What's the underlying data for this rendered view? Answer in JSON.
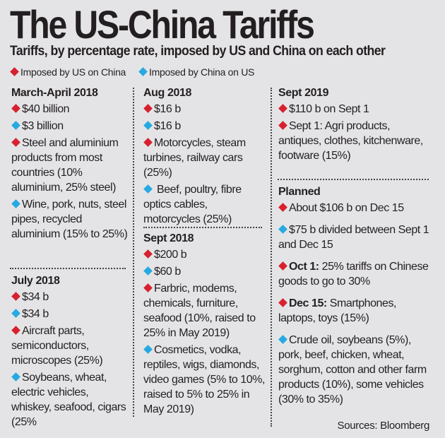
{
  "title": "The US-China Tariffs",
  "subtitle": "Tariffs, by percentage rate, imposed by US and China on each other",
  "colors": {
    "us": "#d7212f",
    "china": "#27a9e1"
  },
  "legend": [
    {
      "key": "us",
      "label": "Imposed by US on China"
    },
    {
      "key": "china",
      "label": "Imposed by China on US"
    }
  ],
  "sections": [
    {
      "heading": "March-April 2018",
      "items": [
        {
          "by": "us",
          "text": "$40 billion"
        },
        {
          "by": "china",
          "text": "$3 billion"
        },
        {
          "by": "us",
          "text": "Steel and aluminium products from most countries (10% aluminium, 25% steel)"
        },
        {
          "by": "china",
          "text": "Wine, pork, nuts, steel pipes, recycled aluminium (15% to 25%)"
        }
      ]
    },
    {
      "heading": "July 2018",
      "items": [
        {
          "by": "us",
          "text": "$34 b"
        },
        {
          "by": "china",
          "text": "$34 b"
        },
        {
          "by": "us",
          "text": "Aircraft parts, semiconductors, microscopes (25%)"
        },
        {
          "by": "china",
          "text": "Soybeans, wheat, electric vehicles, whiskey, seafood, cigars (25%"
        }
      ]
    },
    {
      "heading": "Aug 2018",
      "items": [
        {
          "by": "us",
          "text": "$16 b"
        },
        {
          "by": "china",
          "text": "$16 b"
        },
        {
          "by": "us",
          "text": "Motorcycles, steam turbines, railway cars (25%)"
        },
        {
          "by": "china",
          "text": " Beef, poultry, fibre optics cables, motorcycles (25%)"
        }
      ]
    },
    {
      "heading": "Sept 2018",
      "items": [
        {
          "by": "us",
          "text": "$200 b"
        },
        {
          "by": "china",
          "text": "$60 b"
        },
        {
          "by": "us",
          "text": "Farbric, modems, chemicals, furniture, seafood (10%, raised to 25% in May 2019)"
        },
        {
          "by": "china",
          "text": "Cosmetics, vodka, reptiles, wigs, diamonds, video games (5% to 10%, raised to 5% to 25% in May 2019)"
        }
      ]
    },
    {
      "heading": "Sept 2019",
      "items": [
        {
          "by": "us",
          "text": "$110 b on Sept 1"
        },
        {
          "by": "us",
          "text": "Sept 1: Agri products, antiques, clothes, kitchenware, footware (15%)"
        }
      ]
    },
    {
      "heading": "Planned",
      "items": [
        {
          "by": "us",
          "text": "About $106 b on Dec 15"
        },
        {
          "by": "china",
          "text": "$75 b divided between Sept 1 and Dec 15"
        },
        {
          "by": "us",
          "bold": "Oct 1:",
          "text": " 25% tariffs on Chinese goods to go to 30%"
        },
        {
          "by": "us",
          "bold": "Dec 15:",
          "text": " Smartphones, laptops, toys (15%)"
        },
        {
          "by": "china",
          "text": "Crude oil, soybeans (5%), pork, beef, chicken, wheat, sorghum, cotton and other farm products (10%), some vehicles (30% to 35%)"
        }
      ]
    }
  ],
  "source": "Sources: Bloomberg"
}
